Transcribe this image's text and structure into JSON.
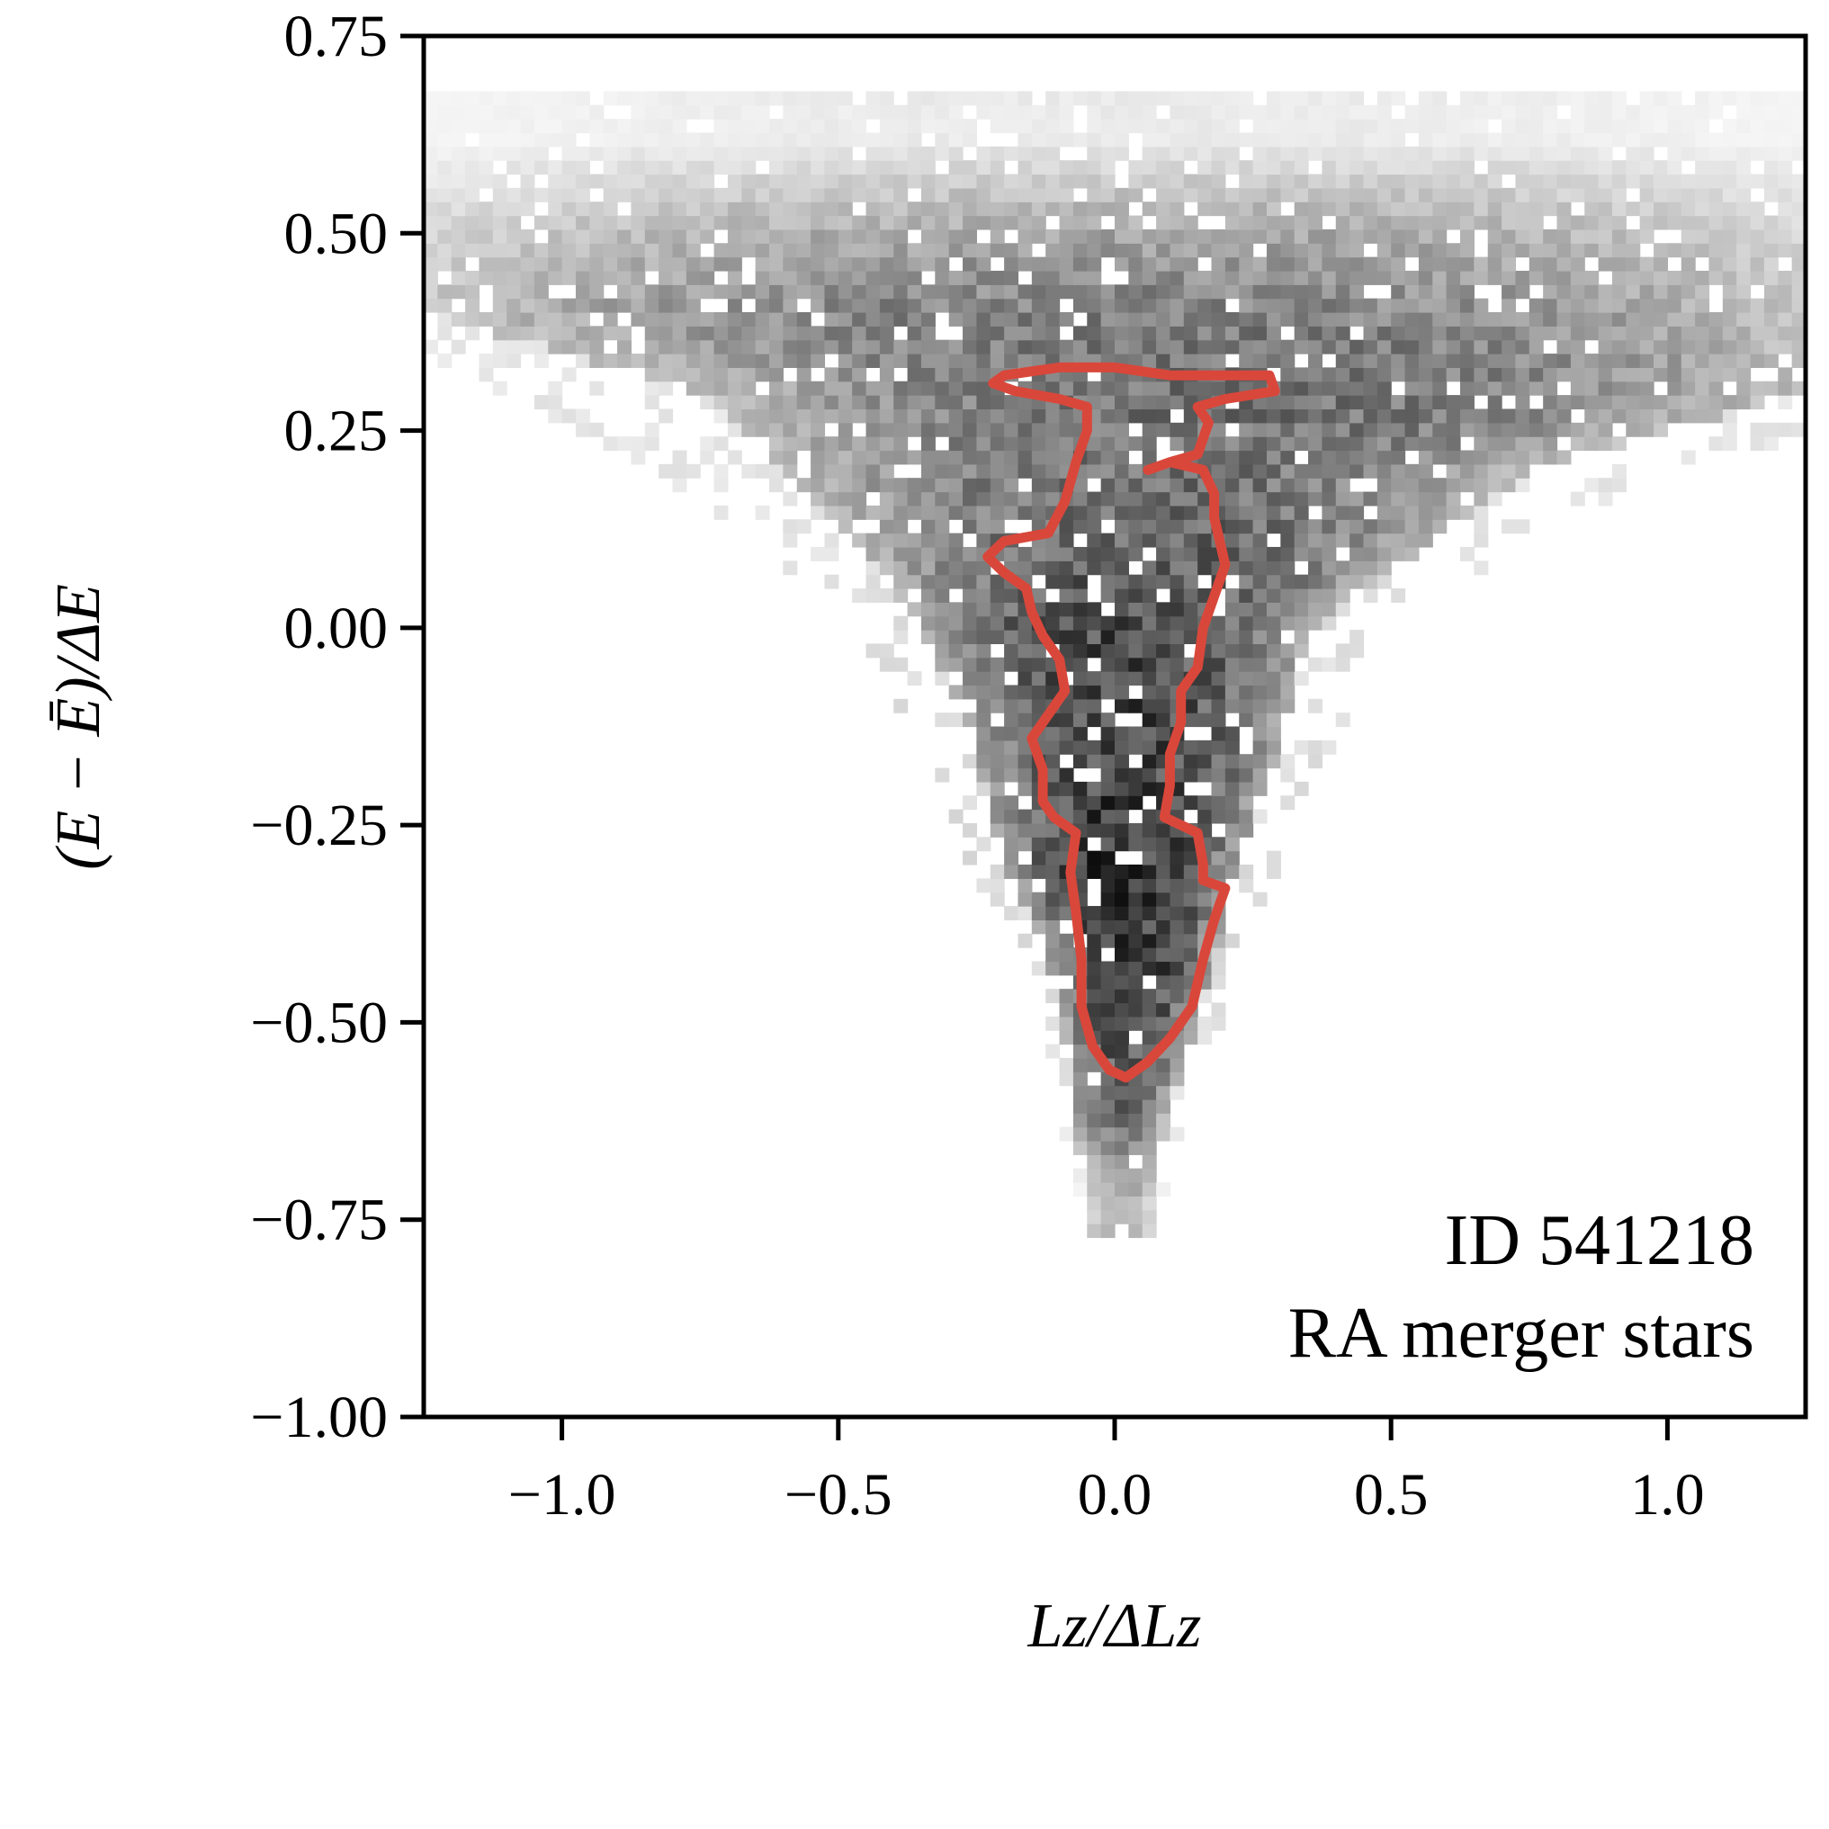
{
  "chart_data": {
    "type": "heatmap",
    "title": "",
    "xlabel": "Lz/ΔLz",
    "ylabel": "(E − Ē)/ΔE",
    "xlim": [
      -1.25,
      1.25
    ],
    "ylim": [
      -1.0,
      0.75
    ],
    "xticks": [
      -1.0,
      -0.5,
      0.0,
      0.5,
      1.0
    ],
    "xtick_labels": [
      "−1.0",
      "−0.5",
      "0.0",
      "0.5",
      "1.0"
    ],
    "yticks": [
      -1.0,
      -0.75,
      -0.5,
      -0.25,
      0.0,
      0.25,
      0.5,
      0.75
    ],
    "ytick_labels": [
      "−1.00",
      "−0.75",
      "−0.50",
      "−0.25",
      "0.00",
      "0.25",
      "0.50",
      "0.75"
    ],
    "grid": false,
    "annotations": [
      "ID 541218",
      "RA merger stars"
    ],
    "annotation_position": "bottom-right",
    "colormap": "greys",
    "density_shape": {
      "description_rows": [
        {
          "y": 0.62,
          "x_min": -1.25,
          "x_max": 1.25,
          "level": 0.08
        },
        {
          "y": 0.5,
          "x_min": -1.25,
          "x_max": 1.25,
          "level": 0.35
        },
        {
          "y": 0.4,
          "x_min": -1.25,
          "x_max": 1.25,
          "level": 0.5
        },
        {
          "y": 0.3,
          "x_min": -0.75,
          "x_max": 1.25,
          "level": 0.55
        },
        {
          "y": 0.2,
          "x_min": -0.6,
          "x_max": 0.75,
          "level": 0.55
        },
        {
          "y": 0.1,
          "x_min": -0.45,
          "x_max": 0.55,
          "level": 0.62
        },
        {
          "y": 0.0,
          "x_min": -0.35,
          "x_max": 0.35,
          "level": 0.7
        },
        {
          "y": -0.15,
          "x_min": -0.25,
          "x_max": 0.3,
          "level": 0.72
        },
        {
          "y": -0.3,
          "x_min": -0.2,
          "x_max": 0.22,
          "level": 0.78
        },
        {
          "y": -0.45,
          "x_min": -0.1,
          "x_max": 0.17,
          "level": 0.75
        },
        {
          "y": -0.6,
          "x_min": -0.08,
          "x_max": 0.1,
          "level": 0.6
        },
        {
          "y": -0.72,
          "x_min": -0.05,
          "x_max": 0.07,
          "level": 0.3
        }
      ]
    },
    "contour": {
      "color": "#d9473b",
      "points": [
        [
          -0.22,
          0.31
        ],
        [
          -0.2,
          0.32
        ],
        [
          -0.1,
          0.33
        ],
        [
          0.0,
          0.33
        ],
        [
          0.1,
          0.32
        ],
        [
          0.2,
          0.32
        ],
        [
          0.28,
          0.32
        ],
        [
          0.29,
          0.3
        ],
        [
          0.2,
          0.29
        ],
        [
          0.15,
          0.28
        ],
        [
          0.17,
          0.26
        ],
        [
          0.16,
          0.24
        ],
        [
          0.15,
          0.22
        ],
        [
          0.1,
          0.21
        ],
        [
          0.06,
          0.2
        ],
        [
          0.1,
          0.21
        ],
        [
          0.16,
          0.2
        ],
        [
          0.18,
          0.17
        ],
        [
          0.18,
          0.14
        ],
        [
          0.19,
          0.11
        ],
        [
          0.2,
          0.08
        ],
        [
          0.18,
          0.04
        ],
        [
          0.16,
          0.0
        ],
        [
          0.15,
          -0.05
        ],
        [
          0.12,
          -0.08
        ],
        [
          0.12,
          -0.12
        ],
        [
          0.1,
          -0.16
        ],
        [
          0.1,
          -0.2
        ],
        [
          0.09,
          -0.24
        ],
        [
          0.12,
          -0.25
        ],
        [
          0.15,
          -0.26
        ],
        [
          0.16,
          -0.3
        ],
        [
          0.16,
          -0.32
        ],
        [
          0.2,
          -0.33
        ],
        [
          0.18,
          -0.37
        ],
        [
          0.16,
          -0.42
        ],
        [
          0.14,
          -0.48
        ],
        [
          0.1,
          -0.52
        ],
        [
          0.06,
          -0.55
        ],
        [
          0.02,
          -0.57
        ],
        [
          -0.01,
          -0.56
        ],
        [
          -0.04,
          -0.53
        ],
        [
          -0.06,
          -0.48
        ],
        [
          -0.06,
          -0.42
        ],
        [
          -0.07,
          -0.36
        ],
        [
          -0.08,
          -0.31
        ],
        [
          -0.07,
          -0.26
        ],
        [
          -0.11,
          -0.24
        ],
        [
          -0.13,
          -0.22
        ],
        [
          -0.13,
          -0.18
        ],
        [
          -0.15,
          -0.14
        ],
        [
          -0.13,
          -0.12
        ],
        [
          -0.09,
          -0.08
        ],
        [
          -0.1,
          -0.04
        ],
        [
          -0.13,
          -0.01
        ],
        [
          -0.15,
          0.02
        ],
        [
          -0.16,
          0.05
        ],
        [
          -0.2,
          0.07
        ],
        [
          -0.23,
          0.09
        ],
        [
          -0.2,
          0.11
        ],
        [
          -0.12,
          0.12
        ],
        [
          -0.09,
          0.16
        ],
        [
          -0.07,
          0.21
        ],
        [
          -0.05,
          0.25
        ],
        [
          -0.05,
          0.28
        ],
        [
          -0.1,
          0.29
        ],
        [
          -0.18,
          0.3
        ],
        [
          -0.22,
          0.31
        ]
      ]
    }
  }
}
